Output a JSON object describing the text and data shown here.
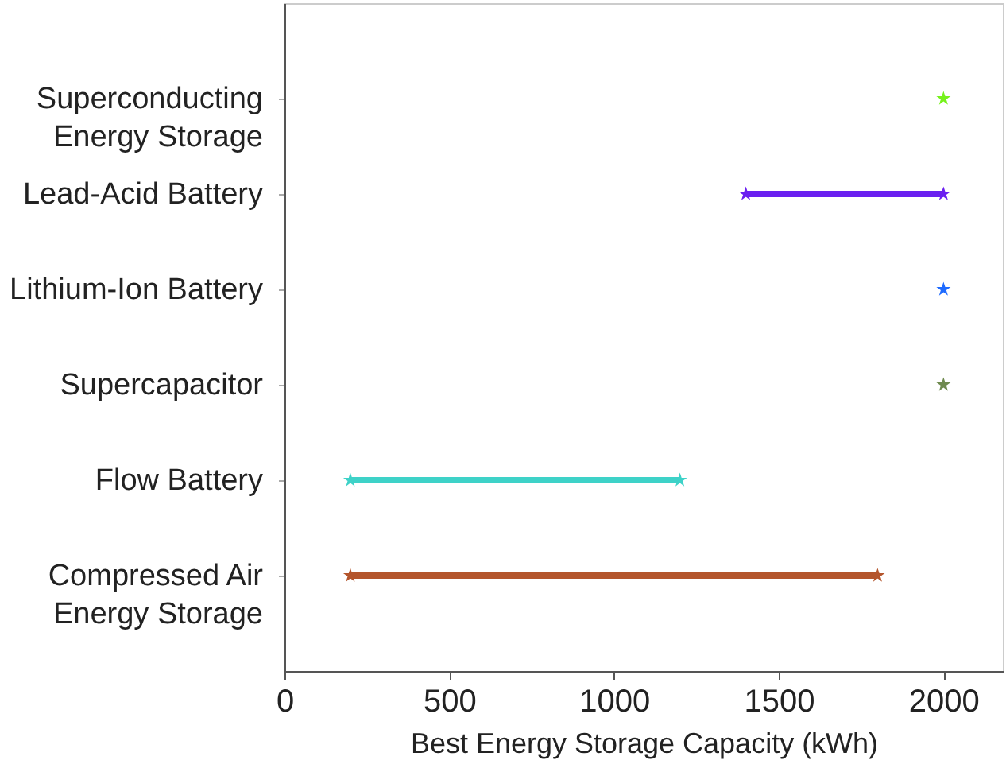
{
  "chart_data": {
    "type": "bar",
    "orientation": "horizontal",
    "xlabel": "Best Energy Storage Capacity (kWh)",
    "categories": [
      "Superconducting Energy Storage",
      "Lead-Acid Battery",
      "Lithium-Ion Battery",
      "Supercapacitor",
      "Flow Battery",
      "Compressed Air Energy Storage"
    ],
    "series": [
      {
        "base": [
          null,
          1400,
          null,
          null,
          200,
          200
        ],
        "values": [
          null,
          600,
          null,
          null,
          1000,
          1600
        ],
        "colors": [
          null,
          "#6a1ff0",
          null,
          null,
          "#3ed2c8",
          "#b4552c"
        ]
      },
      {
        "type": "scatter",
        "x": [
          "Superconducting Energy Storage",
          "Lead-Acid Battery",
          "Lithium-Ion Battery",
          "Supercapacitor",
          "Flow Battery",
          "Compressed Air Energy Storage"
        ],
        "values": [
          2000,
          1400,
          2000,
          2000,
          200,
          200
        ],
        "colors": [
          "#76f21c",
          "#6a1ff0",
          "#1f6bff",
          "#6f8a4f",
          "#3ed2c8",
          "#b4552c"
        ]
      },
      {
        "type": "scatter",
        "x": [
          "Lead-Acid Battery",
          "Flow Battery",
          "Compressed Air Energy Storage"
        ],
        "values": [
          2000,
          1200,
          1800
        ],
        "colors": [
          "#6a1ff0",
          "#3ed2c8",
          "#b4552c"
        ]
      }
    ],
    "xlim": [
      0,
      2180
    ],
    "xticks": [
      0,
      500,
      1000,
      1500,
      2000
    ],
    "marker": "star",
    "grid": false
  }
}
